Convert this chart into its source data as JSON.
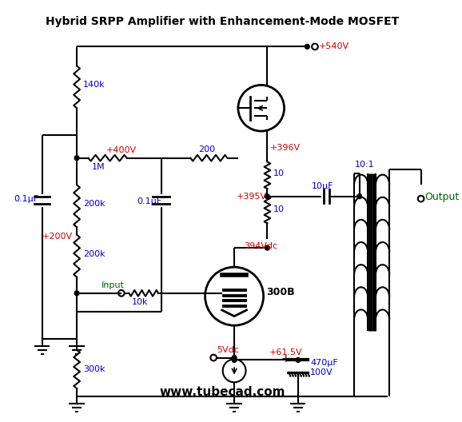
{
  "title": "Hybrid SRPP Amplifier with Enhancement-Mode MOSFET",
  "bg_color": "#ffffff",
  "text_blue": "#0000cc",
  "text_red": "#cc0000",
  "text_green": "#006600",
  "text_black": "#000000",
  "line_color": "#000000",
  "website": "www.tubecad.com",
  "labels": {
    "v540": "+540V",
    "v400": "+400V",
    "v396": "+396V",
    "v395": "+395V",
    "v394": "394Vdc",
    "v200": "+200V",
    "v61": "+61.5V",
    "v5": "5Vdc",
    "r140k": "140k",
    "r1M": "1M",
    "r200k_top": "200k",
    "r200k_bot": "200k",
    "r300k": "300k",
    "r200": "200",
    "r10k": "10k",
    "r10_top": "10",
    "r10_bot": "10",
    "c01_left": "0.1μF",
    "c01_mid": "0.1μF",
    "c10": "10μF",
    "c470": "470μF\n100V",
    "tube": "300B",
    "ratio": "10:1",
    "output": "Output",
    "input": "Input"
  }
}
